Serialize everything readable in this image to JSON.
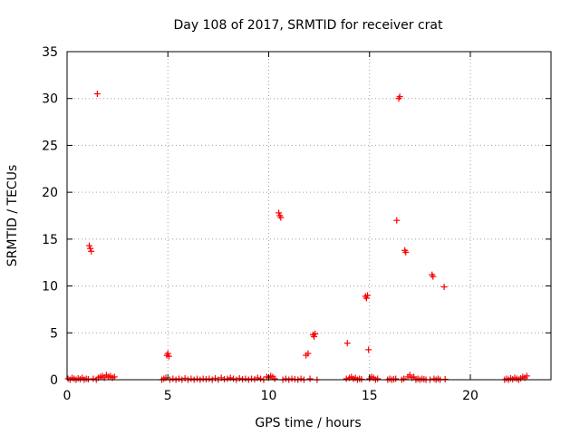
{
  "chart_data": {
    "type": "scatter",
    "title": "Day 108 of 2017, SRMTID for receiver crat",
    "xlabel": "GPS time / hours",
    "ylabel": "SRMTID / TECUs",
    "xlim": [
      0,
      24
    ],
    "ylim": [
      0,
      35
    ],
    "xticks": [
      0,
      5,
      10,
      15,
      20
    ],
    "yticks": [
      0,
      5,
      10,
      15,
      20,
      25,
      30,
      35
    ],
    "xtick_labels": [
      "0",
      "5",
      "10",
      "15",
      "20"
    ],
    "ytick_labels": [
      "0",
      "5",
      "10",
      "15",
      "20",
      "25",
      "30",
      "35"
    ],
    "grid": true,
    "marker": "+",
    "color": "#ff0000",
    "series": [
      {
        "name": "SRMTID",
        "points": [
          [
            0.05,
            0.1
          ],
          [
            0.15,
            0.0
          ],
          [
            0.25,
            0.2
          ],
          [
            0.35,
            0.1
          ],
          [
            0.45,
            0.0
          ],
          [
            0.55,
            0.15
          ],
          [
            0.65,
            0.05
          ],
          [
            0.75,
            0.2
          ],
          [
            0.85,
            0.0
          ],
          [
            0.95,
            0.1
          ],
          [
            1.05,
            0.05
          ],
          [
            1.1,
            14.3
          ],
          [
            1.15,
            14.0
          ],
          [
            1.2,
            13.7
          ],
          [
            1.3,
            0.1
          ],
          [
            1.5,
            30.5
          ],
          [
            1.45,
            0.0
          ],
          [
            1.55,
            0.2
          ],
          [
            1.65,
            0.3
          ],
          [
            1.75,
            0.4
          ],
          [
            1.85,
            0.2
          ],
          [
            1.95,
            0.5
          ],
          [
            2.05,
            0.3
          ],
          [
            2.15,
            0.4
          ],
          [
            2.25,
            0.2
          ],
          [
            2.35,
            0.3
          ],
          [
            4.7,
            0.0
          ],
          [
            4.8,
            0.1
          ],
          [
            4.9,
            0.2
          ],
          [
            4.95,
            2.6
          ],
          [
            5.0,
            2.8
          ],
          [
            5.05,
            2.5
          ],
          [
            5.1,
            0.0
          ],
          [
            5.25,
            0.1
          ],
          [
            5.4,
            0.0
          ],
          [
            5.55,
            0.1
          ],
          [
            5.7,
            0.0
          ],
          [
            5.85,
            0.15
          ],
          [
            6.0,
            0.0
          ],
          [
            6.15,
            0.1
          ],
          [
            6.3,
            0.0
          ],
          [
            6.45,
            0.1
          ],
          [
            6.6,
            0.0
          ],
          [
            6.75,
            0.1
          ],
          [
            6.9,
            0.05
          ],
          [
            7.05,
            0.1
          ],
          [
            7.2,
            0.0
          ],
          [
            7.35,
            0.15
          ],
          [
            7.5,
            0.0
          ],
          [
            7.65,
            0.2
          ],
          [
            7.8,
            0.05
          ],
          [
            7.95,
            0.1
          ],
          [
            8.1,
            0.2
          ],
          [
            8.25,
            0.1
          ],
          [
            8.4,
            0.0
          ],
          [
            8.55,
            0.15
          ],
          [
            8.7,
            0.05
          ],
          [
            8.85,
            0.1
          ],
          [
            9.0,
            0.0
          ],
          [
            9.15,
            0.1
          ],
          [
            9.3,
            0.05
          ],
          [
            9.45,
            0.2
          ],
          [
            9.6,
            0.1
          ],
          [
            9.75,
            0.0
          ],
          [
            9.9,
            0.3
          ],
          [
            10.0,
            0.2
          ],
          [
            10.1,
            0.4
          ],
          [
            10.2,
            0.3
          ],
          [
            10.3,
            0.1
          ],
          [
            10.5,
            17.8
          ],
          [
            10.55,
            17.5
          ],
          [
            10.6,
            17.3
          ],
          [
            10.7,
            0.0
          ],
          [
            10.85,
            0.1
          ],
          [
            11.0,
            0.0
          ],
          [
            11.15,
            0.1
          ],
          [
            11.3,
            0.05
          ],
          [
            11.45,
            0.0
          ],
          [
            11.6,
            0.1
          ],
          [
            11.75,
            0.0
          ],
          [
            11.85,
            2.6
          ],
          [
            11.95,
            2.8
          ],
          [
            12.05,
            0.1
          ],
          [
            12.2,
            4.8
          ],
          [
            12.25,
            4.6
          ],
          [
            12.3,
            4.9
          ],
          [
            12.4,
            0.0
          ],
          [
            13.9,
            3.9
          ],
          [
            13.85,
            0.1
          ],
          [
            14.0,
            0.2
          ],
          [
            14.1,
            0.3
          ],
          [
            14.2,
            0.1
          ],
          [
            14.3,
            0.2
          ],
          [
            14.4,
            0.0
          ],
          [
            14.5,
            0.1
          ],
          [
            14.6,
            0.05
          ],
          [
            14.8,
            8.9
          ],
          [
            14.85,
            8.7
          ],
          [
            14.9,
            9.0
          ],
          [
            14.95,
            3.2
          ],
          [
            15.0,
            0.1
          ],
          [
            15.1,
            0.3
          ],
          [
            15.2,
            0.2
          ],
          [
            15.3,
            0.0
          ],
          [
            15.4,
            0.1
          ],
          [
            15.9,
            0.0
          ],
          [
            16.0,
            0.1
          ],
          [
            16.1,
            0.0
          ],
          [
            16.2,
            0.05
          ],
          [
            16.3,
            0.1
          ],
          [
            16.35,
            17.0
          ],
          [
            16.45,
            30.0
          ],
          [
            16.5,
            30.2
          ],
          [
            16.6,
            0.0
          ],
          [
            16.7,
            0.1
          ],
          [
            16.75,
            13.8
          ],
          [
            16.8,
            13.6
          ],
          [
            16.9,
            0.3
          ],
          [
            17.0,
            0.5
          ],
          [
            17.1,
            0.2
          ],
          [
            17.2,
            0.3
          ],
          [
            17.3,
            0.0
          ],
          [
            17.4,
            0.1
          ],
          [
            17.5,
            0.0
          ],
          [
            17.6,
            0.1
          ],
          [
            17.7,
            0.05
          ],
          [
            17.8,
            0.0
          ],
          [
            18.0,
            0.0
          ],
          [
            18.1,
            11.2
          ],
          [
            18.15,
            11.0
          ],
          [
            18.2,
            0.1
          ],
          [
            18.3,
            0.0
          ],
          [
            18.4,
            0.1
          ],
          [
            18.5,
            0.0
          ],
          [
            18.7,
            9.9
          ],
          [
            18.75,
            0.05
          ],
          [
            21.7,
            0.0
          ],
          [
            21.8,
            0.1
          ],
          [
            21.9,
            0.0
          ],
          [
            22.0,
            0.15
          ],
          [
            22.1,
            0.05
          ],
          [
            22.2,
            0.2
          ],
          [
            22.3,
            0.1
          ],
          [
            22.4,
            0.0
          ],
          [
            22.5,
            0.15
          ],
          [
            22.6,
            0.3
          ],
          [
            22.7,
            0.2
          ],
          [
            22.8,
            0.4
          ]
        ]
      }
    ]
  }
}
